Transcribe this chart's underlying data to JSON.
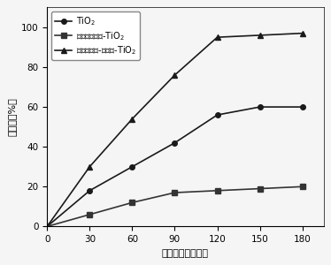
{
  "x": [
    0,
    30,
    60,
    90,
    120,
    150,
    180
  ],
  "series": [
    {
      "label": "TiO$_2$",
      "values": [
        0,
        18,
        30,
        42,
        56,
        60,
        60
      ],
      "color": "#1a1a1a",
      "marker": "o",
      "markersize": 4,
      "linewidth": 1.2
    },
    {
      "label": "半导体量子点-TiO$_2$",
      "values": [
        0,
        6,
        12,
        17,
        18,
        19,
        20
      ],
      "color": "#333333",
      "marker": "s",
      "markersize": 4,
      "linewidth": 1.2
    },
    {
      "label": "二元量子点-金属化-TiO$_2$",
      "values": [
        0,
        30,
        54,
        76,
        95,
        96,
        97
      ],
      "color": "#1a1a1a",
      "marker": "^",
      "markersize": 5,
      "linewidth": 1.2
    }
  ],
  "xlabel": "光照时间（分钟）",
  "ylabel": "降解率（%）",
  "xlim": [
    0,
    195
  ],
  "ylim": [
    0,
    110
  ],
  "xticks": [
    0,
    30,
    60,
    90,
    120,
    150,
    180
  ],
  "yticks": [
    0,
    20,
    40,
    60,
    80,
    100
  ],
  "fontsize_label": 8,
  "fontsize_tick": 7.5,
  "fontsize_legend": 7,
  "background_color": "#f5f5f5"
}
